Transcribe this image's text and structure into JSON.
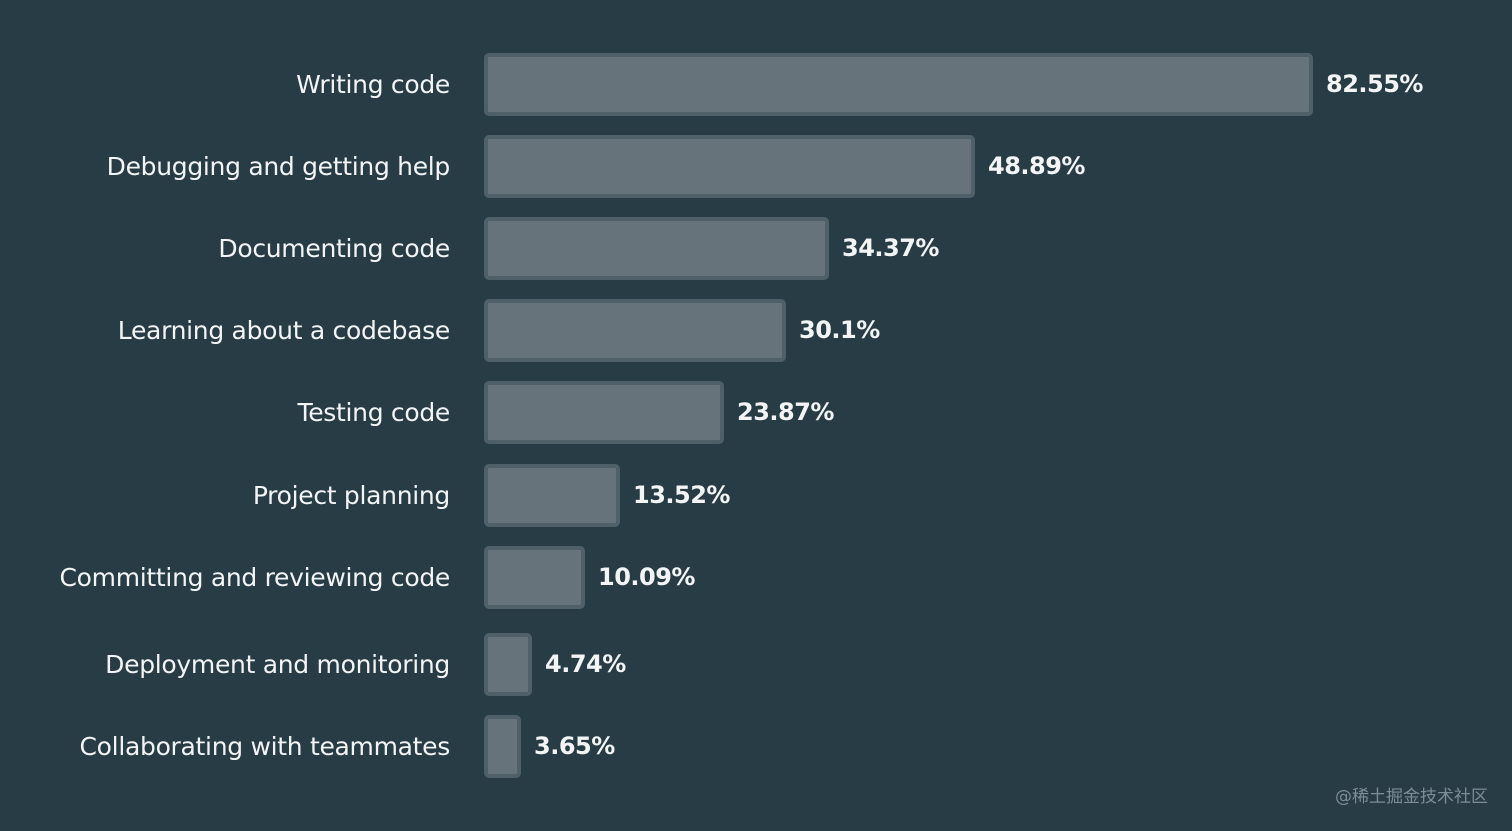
{
  "chart_data": {
    "type": "bar",
    "orientation": "horizontal",
    "categories": [
      "Writing code",
      "Debugging and getting help",
      "Documenting code",
      "Learning about a codebase",
      "Testing code",
      "Project planning",
      "Committing and reviewing code",
      "Deployment and monitoring",
      "Collaborating with teammates"
    ],
    "values": [
      82.55,
      48.89,
      34.37,
      30.1,
      23.87,
      13.52,
      10.09,
      4.74,
      3.65
    ],
    "value_labels": [
      "82.55%",
      "48.89%",
      "34.37%",
      "30.1%",
      "23.87%",
      "13.52%",
      "10.09%",
      "4.74%",
      "3.65%"
    ],
    "unit": "%",
    "title": "",
    "xlabel": "",
    "ylabel": "",
    "grid": false,
    "legend": "none",
    "colors": {
      "background": "#283c45",
      "bar_fill": "#66737b",
      "bar_border": "#4f6068",
      "text": "#f2f4f5"
    }
  },
  "watermark": "@稀土掘金技术社区"
}
